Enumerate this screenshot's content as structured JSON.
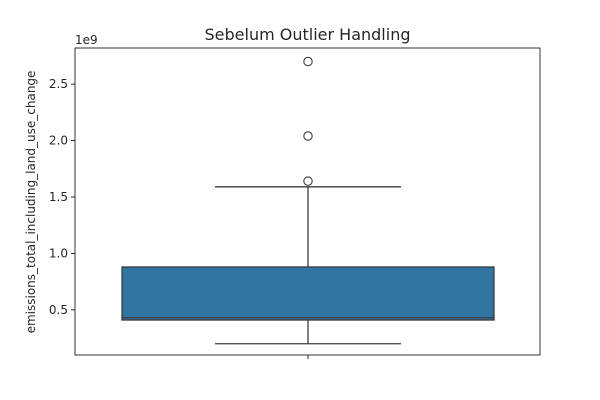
{
  "chart_data": {
    "type": "box",
    "title": "Sebelum Outlier Handling",
    "xlabel": "",
    "ylabel": "emissions_total_including_land_use_change",
    "y_scale_label": "1e9",
    "y_scale_factor": 1000000000,
    "ylim": [
      0.1,
      2.82
    ],
    "yticks": [
      0.5,
      1.0,
      1.5,
      2.0,
      2.5
    ],
    "ytick_labels": [
      "0.5",
      "1.0",
      "1.5",
      "2.0",
      "2.5"
    ],
    "grid": false,
    "legend": "none",
    "box": {
      "whisker_low": 0.2,
      "q1": 0.41,
      "median": 0.43,
      "q3": 0.88,
      "whisker_high": 1.59,
      "outliers": [
        1.64,
        2.04,
        2.7
      ]
    },
    "colors": {
      "box_fill": "#3274a1",
      "line": "#3d3d3d",
      "axis": "#000000",
      "text": "#262626"
    }
  }
}
